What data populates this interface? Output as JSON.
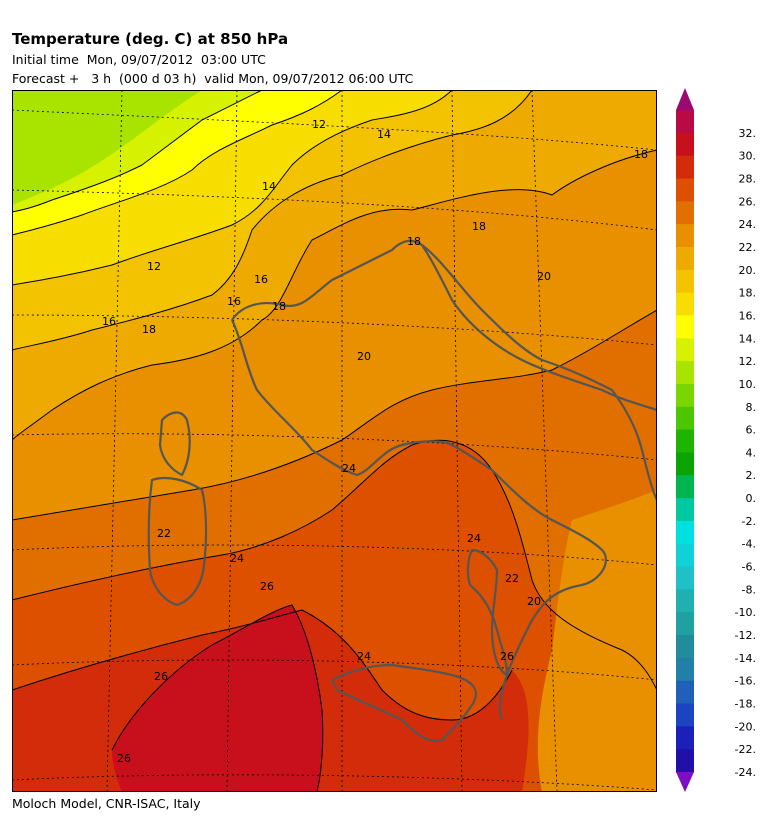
{
  "header": {
    "title": "Temperature (deg. C) at 850 hPa",
    "initial": "Initial time  Mon, 09/07/2012  03:00 UTC",
    "forecast": "Forecast +   3 h  (000 d 03 h)  valid Mon, 09/07/2012 06:00 UTC"
  },
  "footer": "Moloch Model, CNR-ISAC, Italy",
  "contour_labels": [
    "12",
    "12",
    "14",
    "14",
    "16",
    "16",
    "16",
    "18",
    "18",
    "18",
    "18",
    "18",
    "20",
    "20",
    "20",
    "22",
    "22",
    "24",
    "24",
    "24",
    "24",
    "26",
    "26",
    "26",
    "26"
  ],
  "colorbar": {
    "labels": [
      "32.",
      "30.",
      "28.",
      "26.",
      "24.",
      "22.",
      "20.",
      "18.",
      "16.",
      "14.",
      "12.",
      "10.",
      "8.",
      "6.",
      "4.",
      "2.",
      "0.",
      "-2.",
      "-4.",
      "-6.",
      "-8.",
      "-10.",
      "-12.",
      "-14.",
      "-16.",
      "-18.",
      "-20.",
      "-22.",
      "-24."
    ],
    "colors": [
      "#9b0a73",
      "#b80a45",
      "#c8101c",
      "#d32c0a",
      "#dc5000",
      "#e06f00",
      "#e89000",
      "#eeaa00",
      "#f3c200",
      "#f8dd00",
      "#ffff00",
      "#d6f200",
      "#a8e400",
      "#7ad600",
      "#4cc600",
      "#1eb400",
      "#0aa300",
      "#00b450",
      "#00c8a0",
      "#00e0e0",
      "#10d0d8",
      "#20c0c8",
      "#20b0b0",
      "#20a0a0",
      "#208c9c",
      "#2080a8",
      "#2060b8",
      "#1c44c0",
      "#1a20b8",
      "#2010a8",
      "#7c10c0"
    ]
  }
}
